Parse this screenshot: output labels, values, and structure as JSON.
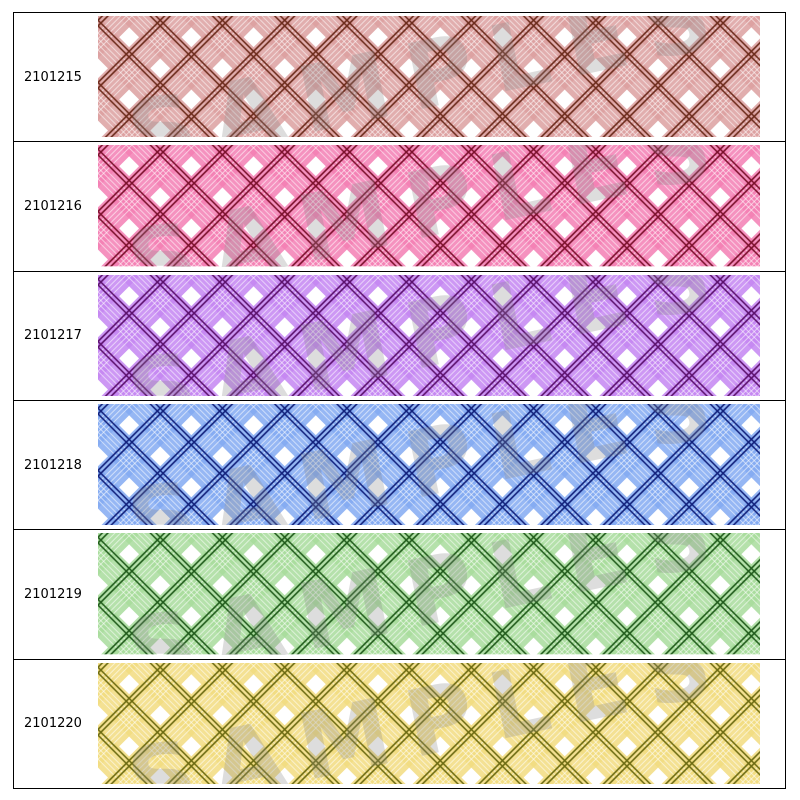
{
  "watermark": "SAMPLES",
  "rows": [
    {
      "id": "2101215"
    },
    {
      "id": "2101216"
    },
    {
      "id": "2101217"
    },
    {
      "id": "2101218"
    },
    {
      "id": "2101219"
    },
    {
      "id": "2101220"
    }
  ]
}
